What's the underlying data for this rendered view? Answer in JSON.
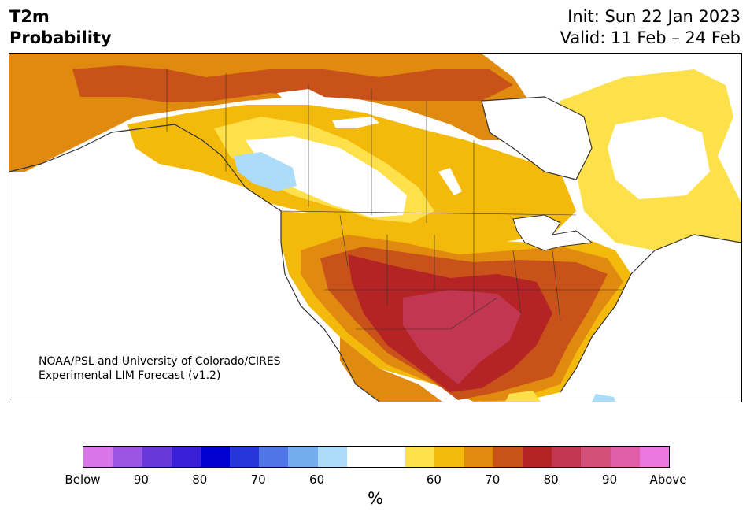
{
  "title": {
    "variable": "T2m",
    "kind": "Probability",
    "init": "Init: Sun 22 Jan 2023",
    "valid": "Valid: 11 Feb – 24 Feb"
  },
  "credit": {
    "line1": "NOAA/PSL and University of Colorado/CIRES",
    "line2": "Experimental LIM Forecast (v1.2)"
  },
  "colorbar": {
    "units": "%",
    "colors": [
      "#d876e8",
      "#9b55e1",
      "#6a37d9",
      "#3a1fd6",
      "#0000d0",
      "#2636d8",
      "#4f75e6",
      "#74acf0",
      "#acdcfa",
      "#ffffff",
      "#ffffff",
      "#fde04a",
      "#f3b90b",
      "#e08a10",
      "#c85219",
      "#b42424",
      "#c23652",
      "#d2507a",
      "#df5ea6",
      "#ea78de"
    ],
    "ticks": [
      {
        "label": "Below"
      },
      {
        "label": "90"
      },
      {
        "label": "80"
      },
      {
        "label": "70"
      },
      {
        "label": "60"
      },
      {
        "label": "60"
      },
      {
        "label": "70"
      },
      {
        "label": "80"
      },
      {
        "label": "90"
      },
      {
        "label": "Above"
      }
    ]
  },
  "map": {
    "region": "North America",
    "palette": {
      "above_50": "#fde04a",
      "above_60": "#f3b90b",
      "above_70": "#e08a10",
      "above_80": "#c85219",
      "above_90": "#b42424",
      "above_95": "#c23652",
      "below_60": "#acdcfa",
      "neutral": "#ffffff",
      "coast": "#333333"
    }
  }
}
